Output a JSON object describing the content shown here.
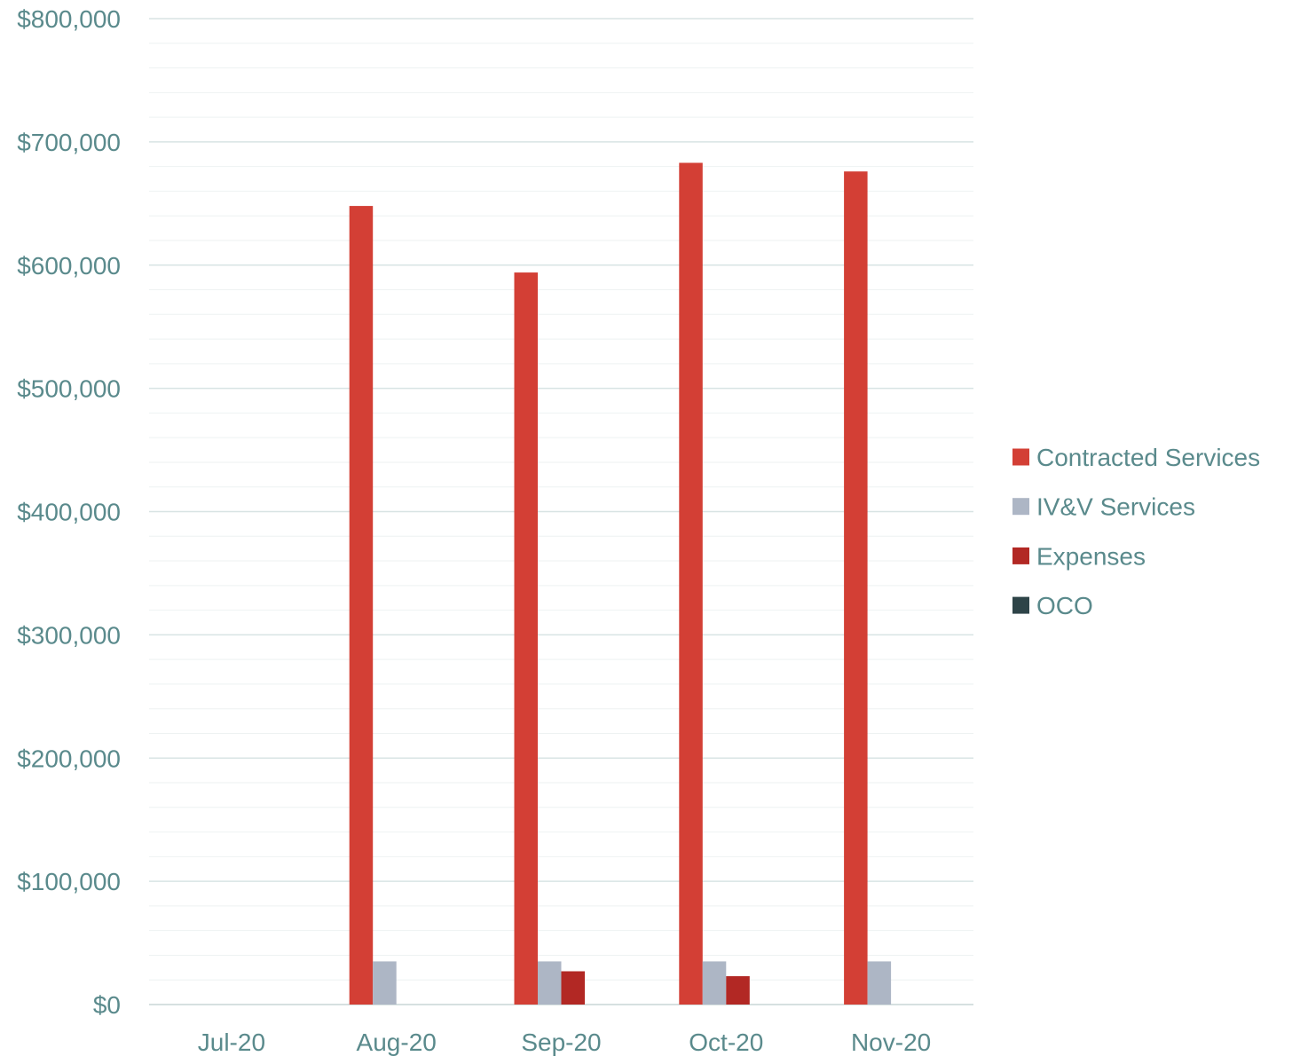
{
  "chart_data": {
    "type": "bar",
    "title": "",
    "xlabel": "",
    "ylabel": "",
    "categories": [
      "Jul-20",
      "Aug-20",
      "Sep-20",
      "Oct-20",
      "Nov-20"
    ],
    "ylim": [
      0,
      800000
    ],
    "y_ticks": [
      0,
      100000,
      200000,
      300000,
      400000,
      500000,
      600000,
      700000,
      800000
    ],
    "y_tick_labels": [
      "$0",
      "$100,000",
      "$200,000",
      "$300,000",
      "$400,000",
      "$500,000",
      "$600,000",
      "$700,000",
      "$800,000"
    ],
    "grid": true,
    "legend_position": "right",
    "series": [
      {
        "name": "Contracted Services",
        "color": "#d33f35",
        "values": [
          0,
          648000,
          594000,
          683000,
          676000
        ]
      },
      {
        "name": "IV&V Services",
        "color": "#adb6c5",
        "values": [
          0,
          35000,
          35000,
          35000,
          35000
        ]
      },
      {
        "name": "Expenses",
        "color": "#b22824",
        "values": [
          0,
          0,
          27000,
          23000,
          0
        ]
      },
      {
        "name": "OCO",
        "color": "#2e4448",
        "values": [
          0,
          0,
          0,
          0,
          0
        ]
      }
    ],
    "axis_text_color": "#5a8a8c",
    "gridline_color": "#d8e4e4"
  }
}
